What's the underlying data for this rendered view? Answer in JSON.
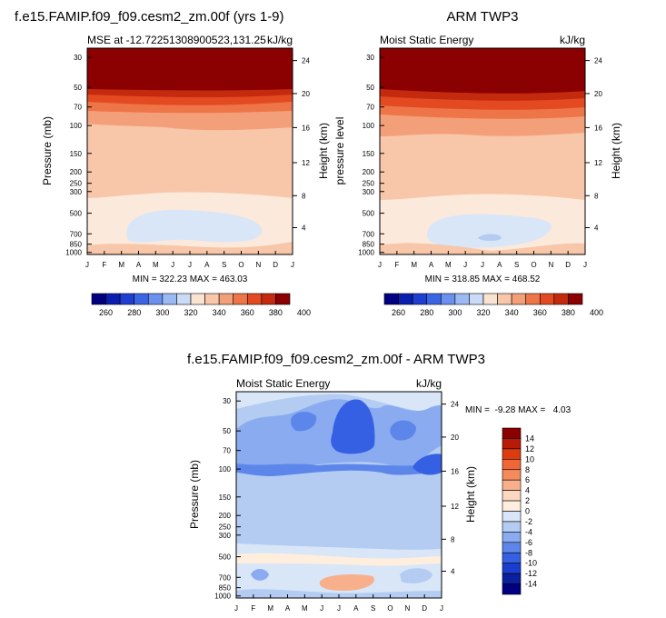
{
  "chart_data": [
    {
      "type": "contour",
      "title": "f.e15.FAMIP.f09_f09.cesm2_zm.00f (yrs 1-9)",
      "subtitle_left": "MSE at -12.72251308900523,131.25",
      "subtitle_right": "kJ/kg",
      "xlabel": "",
      "ylabel": "Pressure (mb)",
      "ylabel_right": "Height (km)",
      "months": [
        "J",
        "F",
        "M",
        "A",
        "M",
        "J",
        "J",
        "A",
        "S",
        "O",
        "N",
        "D",
        "J"
      ],
      "pressure_ticks": [
        "30",
        "50",
        "70",
        "100",
        "150",
        "200",
        "250",
        "300",
        "500",
        "700",
        "850",
        "1000"
      ],
      "height_ticks": [
        "24",
        "20",
        "16",
        "12",
        "8",
        "4"
      ],
      "stats": "MIN = 322.23 MAX = 463.03",
      "colorbar_labels": [
        "260",
        "280",
        "300",
        "320",
        "340",
        "360",
        "380",
        "400"
      ]
    },
    {
      "type": "contour",
      "title": "ARM TWP3",
      "subtitle_left": "Moist Static Energy",
      "subtitle_right": "kJ/kg",
      "ylabel": "pressure level",
      "ylabel_right": "Height (km)",
      "months": [
        "J",
        "F",
        "M",
        "A",
        "M",
        "J",
        "J",
        "A",
        "S",
        "O",
        "N",
        "D",
        "J"
      ],
      "pressure_ticks": [
        "30",
        "50",
        "70",
        "100",
        "150",
        "200",
        "250",
        "300",
        "500",
        "700",
        "850",
        "1000"
      ],
      "height_ticks": [
        "24",
        "20",
        "16",
        "12",
        "8",
        "4"
      ],
      "stats": "MIN = 318.85 MAX = 468.52",
      "colorbar_labels": [
        "260",
        "280",
        "300",
        "320",
        "340",
        "360",
        "380",
        "400"
      ]
    },
    {
      "type": "contour",
      "title": "f.e15.FAMIP.f09_f09.cesm2_zm.00f - ARM TWP3",
      "subtitle_left": "Moist Static Energy",
      "subtitle_right": "kJ/kg",
      "ylabel": "Pressure (mb)",
      "ylabel_right": "Height (km)",
      "months": [
        "J",
        "F",
        "M",
        "A",
        "M",
        "J",
        "J",
        "A",
        "S",
        "O",
        "N",
        "D",
        "J"
      ],
      "pressure_ticks": [
        "30",
        "50",
        "70",
        "100",
        "150",
        "200",
        "250",
        "300",
        "500",
        "700",
        "850",
        "1000"
      ],
      "height_ticks": [
        "24",
        "20",
        "16",
        "12",
        "8",
        "4"
      ],
      "stats": "MIN =  -9.28 MAX =   4.03",
      "colorbar_labels": [
        "14",
        "12",
        "10",
        "8",
        "6",
        "4",
        "2",
        "0",
        "-2",
        "-4",
        "-6",
        "-8",
        "-10",
        "-12",
        "-14"
      ]
    }
  ],
  "colors": {
    "mse_scale": [
      "#000080",
      "#0a1fb0",
      "#1f3fd0",
      "#3a66e6",
      "#6a91ee",
      "#9bb9f2",
      "#c9dbf7",
      "#fbe3d2",
      "#f8c6a8",
      "#f3a07a",
      "#ee7548",
      "#e34a22",
      "#c42a0d",
      "#8b0000"
    ],
    "diff_scale": [
      "#8b0000",
      "#b81a06",
      "#dd3b10",
      "#f06636",
      "#f58b5c",
      "#f8b08c",
      "#fcd8c0",
      "#ffeedd",
      "#d8e6f8",
      "#b4ccf2",
      "#8aabef",
      "#5c86ea",
      "#3560e4",
      "#1a3dd0",
      "#0a209e",
      "#000080"
    ]
  }
}
